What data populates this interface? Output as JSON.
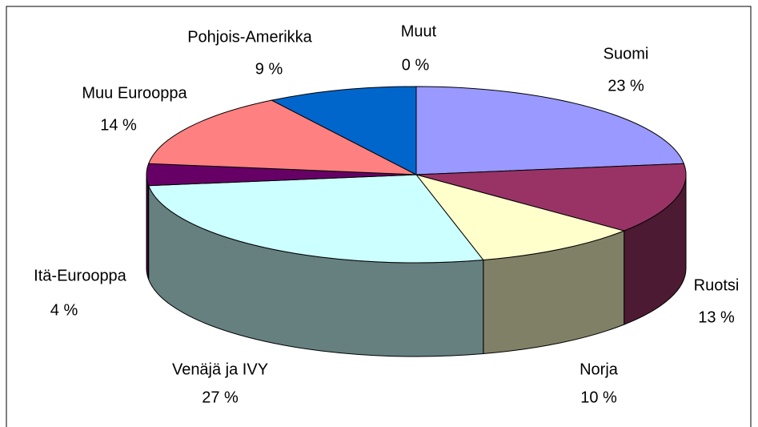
{
  "chart_data": {
    "type": "pie3d",
    "categories": [
      "Suomi",
      "Ruotsi",
      "Norja",
      "Venäjä ja IVY",
      "Itä-Eurooppa",
      "Muu Eurooppa",
      "Pohjois-Amerikka",
      "Muut"
    ],
    "values": [
      23,
      13,
      10,
      27,
      4,
      14,
      9,
      0
    ],
    "value_labels": [
      "23 %",
      "13 %",
      "10 %",
      "27 %",
      "4 %",
      "14 %",
      "9 %",
      "0 %"
    ],
    "colors": [
      "#9999ff",
      "#993366",
      "#ffffcc",
      "#ccffff",
      "#660066",
      "#ff8080",
      "#0066cc",
      "#ccccff"
    ]
  }
}
